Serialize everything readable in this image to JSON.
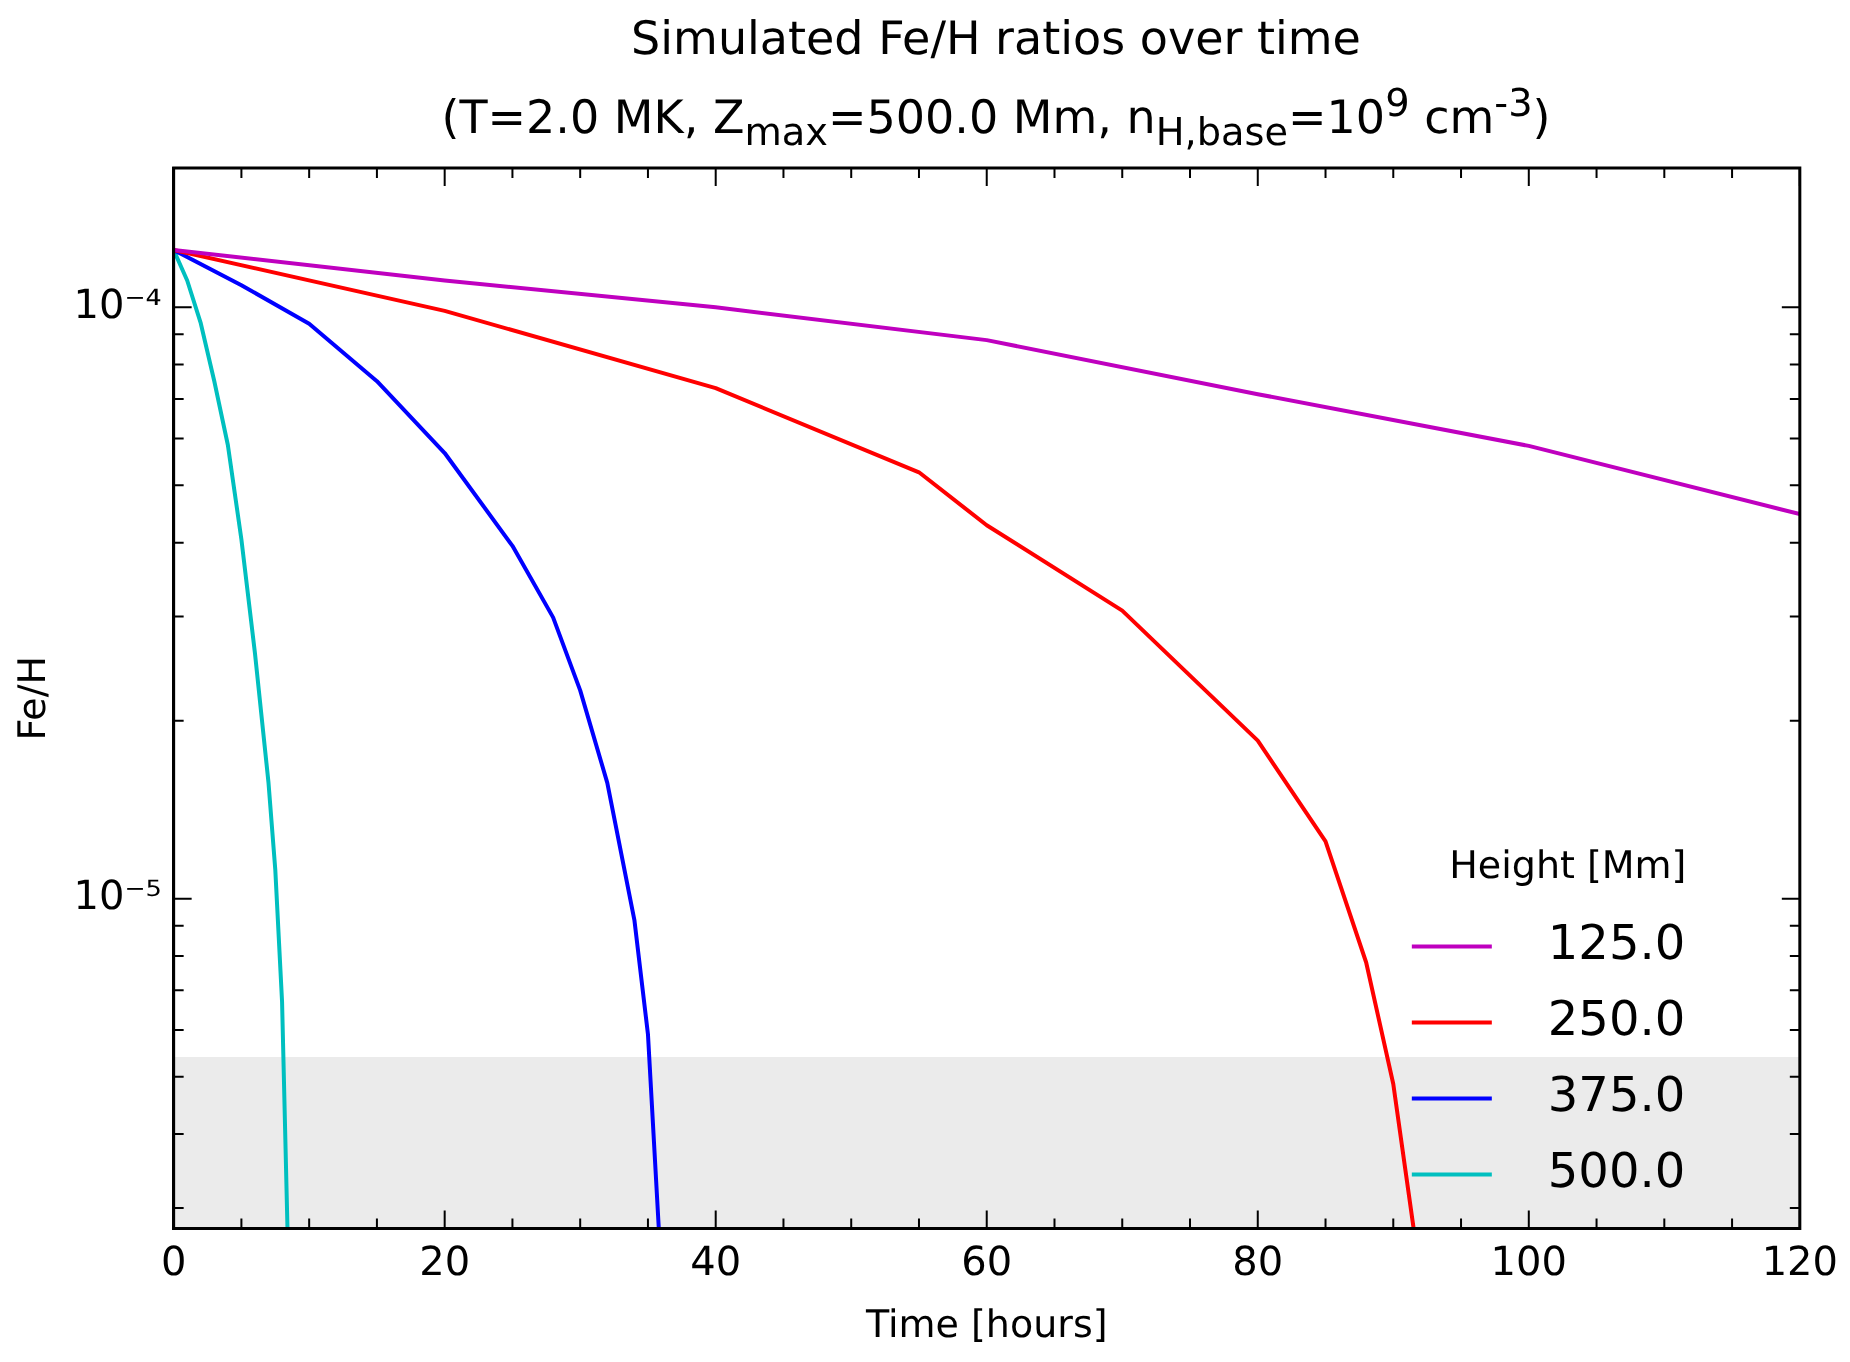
{
  "chart_data": {
    "type": "line",
    "title": "Simulated Fe/H ratios over time",
    "subtitle": "(T=2.0 MK, Z$_{max}$=500.0 Mm, n$_{H,base}$=10$^{9}$ cm$^{-3}$)",
    "xlabel": "Time [hours]",
    "ylabel": "Fe/H",
    "legend_title": "Height [Mm]",
    "legend": "lower right",
    "log": "y",
    "grid": false,
    "line_style": "solid",
    "marker": "none",
    "xlim": [
      0,
      120
    ],
    "xticks": [
      0,
      {
        "value": 5,
        "label": null
      },
      {
        "value": 10,
        "label": null
      },
      {
        "value": 15,
        "label": null
      },
      20,
      {
        "value": 25,
        "label": null
      },
      {
        "value": 30,
        "label": null
      },
      {
        "value": 35,
        "label": null
      },
      40,
      {
        "value": 45,
        "label": null
      },
      {
        "value": 50,
        "label": null
      },
      {
        "value": 55,
        "label": null
      },
      60,
      {
        "value": 65,
        "label": null
      },
      {
        "value": 70,
        "label": null
      },
      {
        "value": 75,
        "label": null
      },
      80,
      {
        "value": 85,
        "label": null
      },
      {
        "value": 90,
        "label": null
      },
      {
        "value": 95,
        "label": null
      },
      100,
      {
        "value": 105,
        "label": null
      },
      {
        "value": 110,
        "label": null
      },
      {
        "value": 115,
        "label": null
      },
      120
    ],
    "ylim": [
      2.77e-06,
      0.000172
    ],
    "yticks": [
      {
        "value": 3e-06,
        "label": null
      },
      {
        "value": 4e-06,
        "label": null
      },
      {
        "value": 5e-06,
        "label": null
      },
      {
        "value": 6e-06,
        "label": null
      },
      {
        "value": 7e-06,
        "label": null
      },
      {
        "value": 8e-06,
        "label": null
      },
      {
        "value": 9e-06,
        "label": null
      },
      {
        "value": 1e-05,
        "label": "10⁻⁵"
      },
      {
        "value": 2e-05,
        "label": null
      },
      {
        "value": 3e-05,
        "label": null
      },
      {
        "value": 4e-05,
        "label": null
      },
      {
        "value": 5e-05,
        "label": null
      },
      {
        "value": 6e-05,
        "label": null
      },
      {
        "value": 7e-05,
        "label": null
      },
      {
        "value": 8e-05,
        "label": null
      },
      {
        "value": 9e-05,
        "label": null
      },
      {
        "value": 0.0001,
        "label": "10⁻⁴"
      }
    ],
    "bands": [
      {
        "axis": "y",
        "from": 2.77e-06,
        "to": 5.4e-06,
        "color": "#ebebeb"
      }
    ],
    "series": [
      {
        "name": "125.0",
        "color": "#bf00bf",
        "x": [
          0,
          20,
          40,
          60,
          80,
          100,
          120
        ],
        "values": [
          0.000125,
          0.000111,
          0.0001,
          8.8e-05,
          7.13e-05,
          5.83e-05,
          4.47e-05
        ]
      },
      {
        "name": "250.0",
        "color": "#ff0000",
        "x": [
          0,
          20,
          40,
          55,
          60,
          70,
          80,
          85,
          88,
          90,
          91.5
        ],
        "values": [
          0.000125,
          9.86e-05,
          7.3e-05,
          5.26e-05,
          4.28e-05,
          3.07e-05,
          1.85e-05,
          1.25e-05,
          7.8e-06,
          4.86e-06,
          2.77e-06
        ]
      },
      {
        "name": "375.0",
        "color": "#0000ff",
        "x": [
          0,
          5,
          10,
          15,
          20,
          25,
          28,
          30,
          32,
          34,
          35,
          35.8
        ],
        "values": [
          0.000125,
          0.000109,
          9.38e-05,
          7.5e-05,
          5.67e-05,
          3.95e-05,
          2.99e-05,
          2.25e-05,
          1.57e-05,
          9.2e-06,
          5.9e-06,
          2.77e-06
        ]
      },
      {
        "name": "500.0",
        "color": "#00bfbf",
        "x": [
          0,
          1,
          2,
          3,
          4,
          5,
          6,
          7,
          7.5,
          8,
          8.4
        ],
        "values": [
          0.000125,
          0.000111,
          9.4e-05,
          7.5e-05,
          5.85e-05,
          4.05e-05,
          2.6e-05,
          1.57e-05,
          1.12e-05,
          6.7e-06,
          2.77e-06
        ]
      }
    ]
  }
}
